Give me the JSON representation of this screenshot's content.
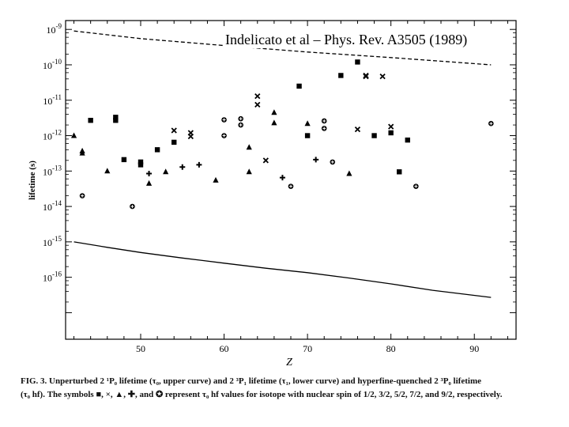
{
  "overlay_title": "Indelicato et al – Phys. Rev. A3505 (1989)",
  "caption": {
    "line1": "FIG. 3.  Unperturbed 2 ¹P₀ lifetime (τ₀, upper curve) and 2 ³P₁ lifetime (τ₁, lower curve) and hyperfine-quenched 2 ³P₀ lifetime",
    "line2": "(τ₀ hf). The symbols ■, ×, ▲, ✚, and ✪ represent τ₀ hf values for isotope with nuclear spin of 1/2, 3/2, 5/2, 7/2, and 9/2, respectively."
  },
  "chart_data": {
    "type": "scatter",
    "title": "",
    "xlabel": "Z",
    "ylabel": "lifetime (s)",
    "xlim": [
      41,
      95
    ],
    "ylim_log10": [
      -17.75,
      -8.75
    ],
    "y_scale": "log",
    "x_ticks": [
      50,
      60,
      70,
      80,
      90
    ],
    "y_ticks": [
      {
        "label": "10-9",
        "exp": -9
      },
      {
        "label": "10-10",
        "exp": -10
      },
      {
        "label": "10-11",
        "exp": -11
      },
      {
        "label": "10-12",
        "exp": -12
      },
      {
        "label": "10-13",
        "exp": -13
      },
      {
        "label": "10-14",
        "exp": -14
      },
      {
        "label": "10-15",
        "exp": -15
      },
      {
        "label": "10-16",
        "exp": -16
      }
    ],
    "curves": [
      {
        "role": "upper curve",
        "style": "dashed",
        "x": [
          42,
          50,
          60,
          70,
          80,
          92
        ],
        "y": [
          9e-10,
          5.5e-10,
          3.5e-10,
          2.3e-10,
          1.6e-10,
          1e-10
        ]
      },
      {
        "role": "lower curve",
        "style": "solid",
        "x": [
          42,
          46,
          50,
          55,
          60,
          65,
          70,
          75,
          80,
          85,
          92
        ],
        "y": [
          1e-15,
          7e-16,
          5e-16,
          3.5e-16,
          2.5e-16,
          1.8e-16,
          1.35e-16,
          9.5e-17,
          6.5e-17,
          4.3e-17,
          2.7e-17
        ]
      }
    ],
    "series": [
      {
        "marker": "square",
        "points": [
          [
            44,
            2.7e-12
          ],
          [
            47,
            3.3e-12
          ],
          [
            47,
            2.7e-12
          ],
          [
            48,
            2.1e-13
          ],
          [
            50,
            1.8e-13
          ],
          [
            50,
            1.5e-13
          ],
          [
            52,
            4e-13
          ],
          [
            54,
            6.5e-13
          ],
          [
            69,
            2.5e-11
          ],
          [
            70,
            1e-12
          ],
          [
            74,
            5e-11
          ],
          [
            76,
            1.2e-10
          ],
          [
            78,
            1e-12
          ],
          [
            80,
            1.2e-12
          ],
          [
            81,
            9.5e-14
          ],
          [
            82,
            7.5e-13
          ]
        ]
      },
      {
        "marker": "cross",
        "points": [
          [
            54,
            1.4e-12
          ],
          [
            56,
            1.2e-12
          ],
          [
            56,
            9.5e-13
          ],
          [
            64,
            1.3e-11
          ],
          [
            64,
            7.5e-12
          ],
          [
            65,
            2e-13
          ],
          [
            76,
            1.5e-12
          ],
          [
            77,
            5e-11
          ],
          [
            77,
            4.7e-11
          ],
          [
            79,
            4.7e-11
          ],
          [
            80,
            1.8e-12
          ]
        ]
      },
      {
        "marker": "triangle",
        "points": [
          [
            42,
            1e-12
          ],
          [
            43,
            3.7e-13
          ],
          [
            43,
            3.2e-13
          ],
          [
            46,
            1e-13
          ],
          [
            51,
            4.5e-14
          ],
          [
            53,
            9.5e-14
          ],
          [
            59,
            5.5e-14
          ],
          [
            63,
            4.7e-13
          ],
          [
            63,
            9.5e-14
          ],
          [
            66,
            4.5e-12
          ],
          [
            66,
            2.3e-12
          ],
          [
            70,
            2.2e-12
          ],
          [
            75,
            8.5e-14
          ]
        ]
      },
      {
        "marker": "plus",
        "points": [
          [
            51,
            8.5e-14
          ],
          [
            55,
            1.3e-13
          ],
          [
            57,
            1.5e-13
          ],
          [
            67,
            6.5e-14
          ],
          [
            71,
            2.1e-13
          ]
        ]
      },
      {
        "marker": "circle-cross",
        "points": [
          [
            43,
            2e-14
          ],
          [
            49,
            1e-14
          ],
          [
            60,
            2.8e-12
          ],
          [
            60,
            1e-12
          ],
          [
            62,
            3e-12
          ],
          [
            62,
            2e-12
          ],
          [
            68,
            3.7e-14
          ],
          [
            72,
            2.6e-12
          ],
          [
            72,
            1.6e-12
          ],
          [
            73,
            1.8e-13
          ],
          [
            83,
            3.7e-14
          ],
          [
            92,
            2.2e-12
          ]
        ]
      }
    ]
  }
}
